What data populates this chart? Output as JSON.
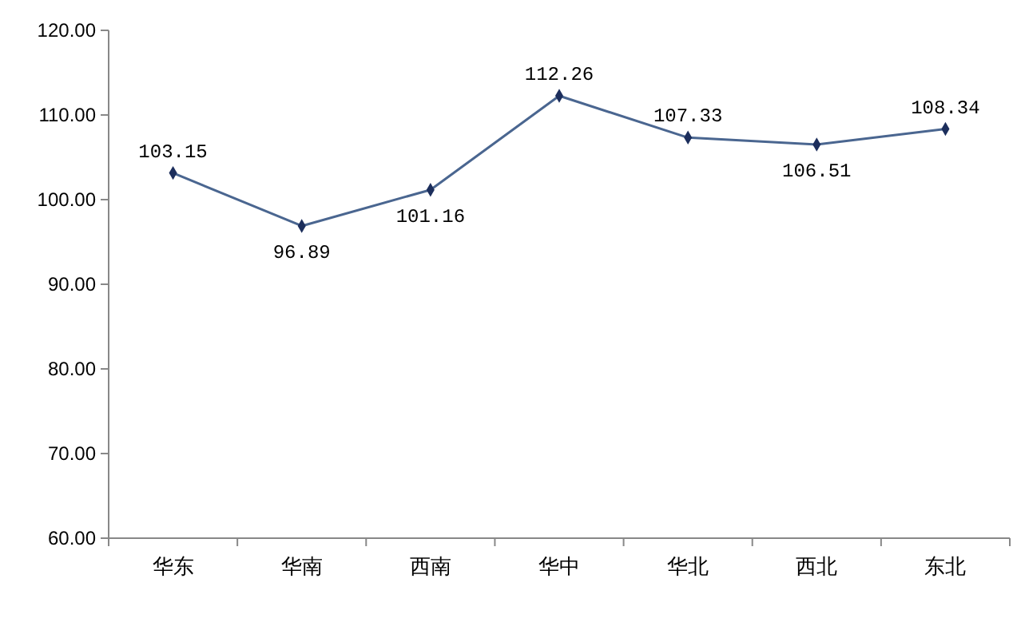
{
  "chart_data": {
    "type": "line",
    "categories": [
      "华东",
      "华南",
      "西南",
      "华中",
      "华北",
      "西北",
      "东北"
    ],
    "series": [
      {
        "color": "#4a6690",
        "values": [
          103.15,
          96.89,
          101.16,
          112.26,
          107.33,
          106.51,
          108.34
        ]
      }
    ],
    "ylim": [
      60,
      120
    ],
    "yticks": [
      {
        "value": 60,
        "label": "60.00"
      },
      {
        "value": 70,
        "label": "70.00"
      },
      {
        "value": 80,
        "label": "80.00"
      },
      {
        "value": 90,
        "label": "90.00"
      },
      {
        "value": 100,
        "label": "100.00"
      },
      {
        "value": 110,
        "label": "110.00"
      },
      {
        "value": 120,
        "label": "120.00"
      }
    ],
    "marker": "diamond",
    "line_style": "solid",
    "data_labels": true,
    "grid": false
  }
}
